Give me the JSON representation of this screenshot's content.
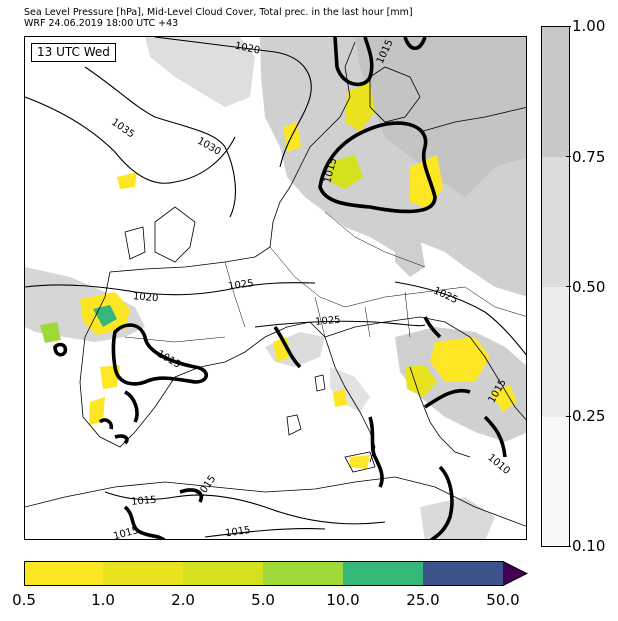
{
  "header": {
    "line1": "Sea Level Pressure [hPa], Mid-Level Cloud Cover, Total prec. in the last hour [mm]",
    "line2": "WRF 24.06.2019 18:00 UTC +43"
  },
  "map": {
    "valid_label": "13 UTC Wed",
    "isobar_labels": [
      "1020",
      "1035",
      "1030",
      "1015",
      "1015",
      "1020",
      "1025",
      "1025",
      "1025",
      "1015",
      "1015",
      "1015",
      "1015",
      "1015",
      "1010"
    ],
    "land_color": "#ffffff",
    "coast_color": "#000000"
  },
  "cloud_colorbar": {
    "ticks": [
      "1.00",
      "0.75",
      "0.50",
      "0.25",
      "0.10"
    ],
    "colors": [
      "#c8c8c8",
      "#dcdcdc",
      "#ececec",
      "#f8f8f8"
    ]
  },
  "precip_colorbar": {
    "ticks": [
      "0.5",
      "1.0",
      "2.0",
      "5.0",
      "10.0",
      "25.0",
      "50.0"
    ],
    "colors": [
      "#fde725",
      "#e8e31e",
      "#d3e11e",
      "#9fd938",
      "#35b779",
      "#2c8d8c",
      "#3b528b",
      "#440154"
    ]
  }
}
